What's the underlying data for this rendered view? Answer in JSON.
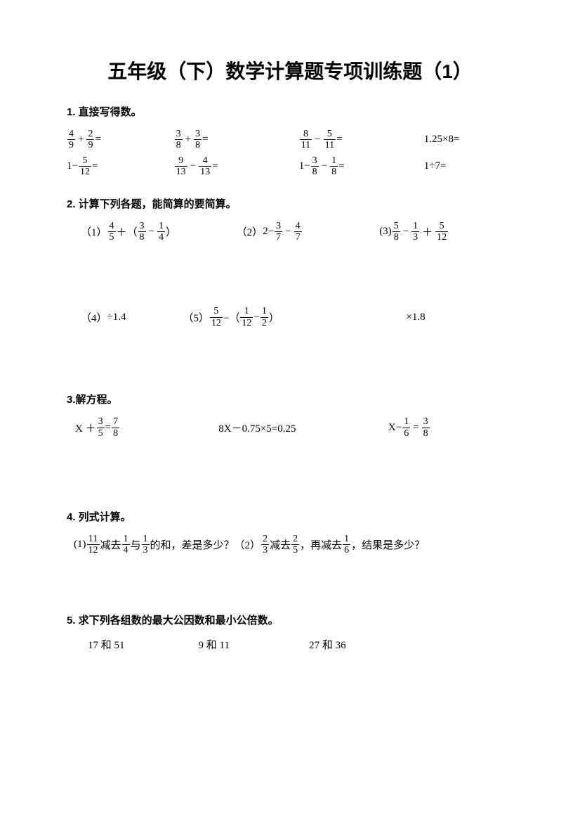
{
  "title": "五年级（下）数学计算题专项训练题（1）",
  "section1": {
    "header": "1. 直接写得数。",
    "row1": {
      "p1": {
        "n1": "4",
        "d1": "9",
        "op": "+",
        "n2": "2",
        "d2": "9",
        "eq": "="
      },
      "p2": {
        "n1": "3",
        "d1": "8",
        "op": "+",
        "n2": "3",
        "d2": "8",
        "eq": "="
      },
      "p3": {
        "n1": "8",
        "d1": "11",
        "op": "−",
        "n2": "5",
        "d2": "11",
        "eq": "="
      },
      "p4": "1.25×8="
    },
    "row2": {
      "p1": {
        "pre": "1−",
        "n1": "5",
        "d1": "12",
        "eq": "="
      },
      "p2": {
        "n1": "9",
        "d1": "13",
        "op": "−",
        "n2": "4",
        "d2": "13",
        "eq": "="
      },
      "p3": {
        "pre": "1−",
        "n1": "3",
        "d1": "8",
        "op": "−",
        "n2": "1",
        "d2": "8",
        "eq": "="
      },
      "p4": "1÷7="
    }
  },
  "section2": {
    "header": "2. 计算下列各题，能简算的要简算。",
    "row1": {
      "p1": {
        "label": "（1）",
        "n1": "4",
        "d1": "5",
        "op1": " ＋（",
        "n2": "3",
        "d2": "8",
        "op2": "−",
        "n3": "1",
        "d3": "4",
        "close": "）"
      },
      "p2": {
        "label": "（2）",
        "pre": "2−",
        "n1": "3",
        "d1": "7",
        "op": "−",
        "n2": "4",
        "d2": "7"
      },
      "p3": {
        "label": "(3)",
        "n1": "5",
        "d1": "8",
        "op1": "−",
        "n2": "1",
        "d2": "3",
        "op2": "＋",
        "n3": "5",
        "d3": "12"
      }
    },
    "row2": {
      "p1": {
        "label": "（4）",
        "text": "÷1.4"
      },
      "p2": {
        "label": "（5）",
        "n1": "5",
        "d1": "12",
        "op1": "−（",
        "n2": "1",
        "d2": "12",
        "op2": " −",
        "n3": "1",
        "d3": "2",
        "close": "）"
      },
      "p3": {
        "text": "×1.8"
      }
    }
  },
  "section3": {
    "header": "3.解方程。",
    "p1": {
      "pre": "X ＋ ",
      "n1": "3",
      "d1": "5",
      "op": " = ",
      "n2": "7",
      "d2": "8"
    },
    "p2": "8X－0.75×5=0.25",
    "p3": {
      "pre": "X−",
      "n1": "1",
      "d1": "6",
      "op": "=",
      "n2": "3",
      "d2": "8"
    }
  },
  "section4": {
    "header": "4. 列式计算。",
    "p1": {
      "label": "(1)",
      "n1": "11",
      "d1": "12",
      "t1": "减去",
      "n2": "1",
      "d2": "4",
      "t2": "与",
      "n3": "1",
      "d3": "3",
      "t3": "的和，差是多少？"
    },
    "p2": {
      "label": "（2）",
      "n1": "2",
      "d1": "3",
      "t1": " 减去",
      "n2": "2",
      "d2": "5",
      "t2": " ，再减去",
      "n3": "1",
      "d3": "6",
      "t3": "，结果是多少？"
    }
  },
  "section5": {
    "header": "5. 求下列各组数的最大公因数和最小公倍数。",
    "p1": "17 和 51",
    "p2": "9 和 11",
    "p3": "27 和 36"
  }
}
